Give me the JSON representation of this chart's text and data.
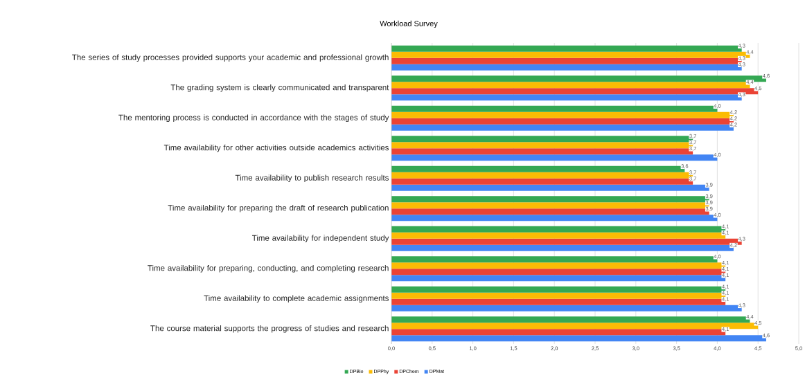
{
  "chart_data": {
    "type": "bar",
    "orientation": "horizontal",
    "title": "Workload Survey",
    "categories": [
      "The series of study processes provided supports your academic and professional growth",
      "The grading system is clearly communicated and transparent",
      "The mentoring process is conducted in accordance with the stages of study",
      "Time availability for other activities outside academics activities",
      "Time availability to publish research results",
      "Time availability for preparing the draft of research publication",
      "Time availability for independent study",
      "Time availability for preparing, conducting, and completing research",
      "Time availability to complete academic assignments",
      "The course material supports the progress of studies and research"
    ],
    "series": [
      {
        "name": "DPBio",
        "color": "#34a853",
        "values": [
          4.3,
          4.6,
          4.0,
          3.7,
          3.6,
          3.9,
          4.1,
          4.0,
          4.1,
          4.4
        ],
        "value_labels": [
          "4,3",
          "4,6",
          "4,0",
          "3,7",
          "3,6",
          "3,9",
          "4,1",
          "4,0",
          "4,1",
          "4,4"
        ]
      },
      {
        "name": "DPPhy",
        "color": "#fbbc04",
        "values": [
          4.4,
          4.4,
          4.2,
          3.7,
          3.7,
          3.9,
          4.1,
          4.1,
          4.1,
          4.5
        ],
        "value_labels": [
          "4,4",
          "4,4",
          "4,2",
          "3,7",
          "3,7",
          "3,9",
          "4,1",
          "4,1",
          "4,1",
          "4,5"
        ]
      },
      {
        "name": "DPChem",
        "color": "#ea4335",
        "values": [
          4.3,
          4.5,
          4.2,
          3.7,
          3.7,
          3.9,
          4.3,
          4.1,
          4.1,
          4.1
        ],
        "value_labels": [
          "4,3",
          "4,5",
          "4,2",
          "3,7",
          "3,7",
          "3,9",
          "4,3",
          "4,1",
          "4,1",
          "4,1"
        ]
      },
      {
        "name": "DPMat",
        "color": "#4285f4",
        "values": [
          4.3,
          4.3,
          4.2,
          4.0,
          3.9,
          4.0,
          4.2,
          4.1,
          4.3,
          4.6
        ],
        "value_labels": [
          "4,3",
          "4,3",
          "4,2",
          "4,0",
          "3,9",
          "4,0",
          "4,2",
          "4,1",
          "4,3",
          "4,6"
        ]
      }
    ],
    "xlim": [
      0,
      5
    ],
    "xticks": [
      {
        "value": 0,
        "label": "0,0"
      },
      {
        "value": 0.5,
        "label": "0,5"
      },
      {
        "value": 1,
        "label": "1,0"
      },
      {
        "value": 1.5,
        "label": "1,5"
      },
      {
        "value": 2,
        "label": "2,0"
      },
      {
        "value": 2.5,
        "label": "2,5"
      },
      {
        "value": 3,
        "label": "3,0"
      },
      {
        "value": 3.5,
        "label": "3,5"
      },
      {
        "value": 4,
        "label": "4,0"
      },
      {
        "value": 4.5,
        "label": "4,5"
      },
      {
        "value": 5,
        "label": "5,0"
      }
    ],
    "grid": "x",
    "legend": "bottom"
  }
}
